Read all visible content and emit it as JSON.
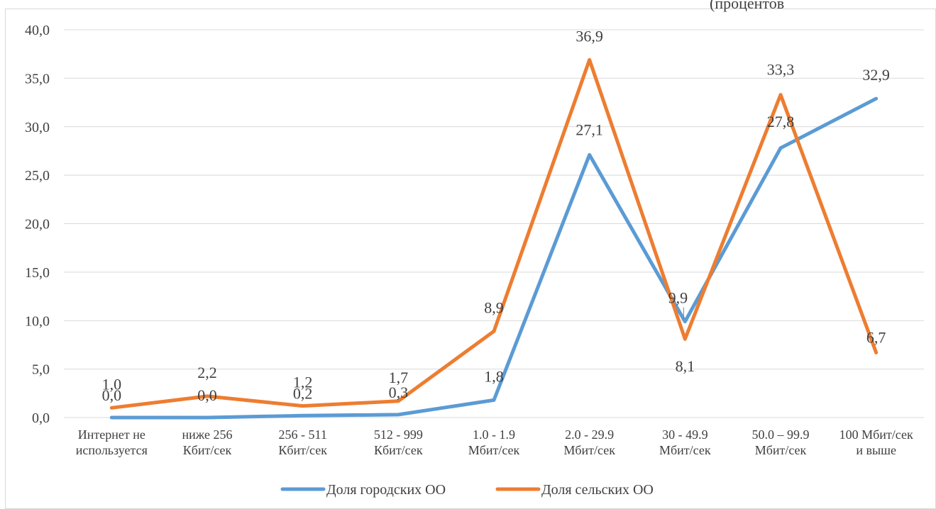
{
  "chart_data": {
    "type": "line",
    "corner_text": "(процентов",
    "ylim": [
      0,
      40
    ],
    "ytick_labels": [
      "0,0",
      "5,0",
      "10,0",
      "15,0",
      "20,0",
      "25,0",
      "30,0",
      "35,0",
      "40,0"
    ],
    "grid": true,
    "legend_position": "bottom",
    "categories": [
      [
        "Интернет не",
        "используется"
      ],
      [
        "ниже 256",
        "Кбит/сек"
      ],
      [
        "256 - 511",
        "Кбит/сек"
      ],
      [
        "512 - 999",
        "Кбит/сек"
      ],
      [
        "1.0 - 1.9",
        "Мбит/сек"
      ],
      [
        "2.0 - 29.9",
        "Мбит/сек"
      ],
      [
        "30 - 49.9",
        "Мбит/сек"
      ],
      [
        "50.0 – 99.9",
        "Мбит/сек"
      ],
      [
        "100 Мбит/сек",
        "и выше"
      ]
    ],
    "series": [
      {
        "name": "Доля городских ОО",
        "color": "#5b9bd5",
        "values": [
          0.0,
          0.0,
          0.2,
          0.3,
          1.8,
          27.1,
          9.9,
          27.8,
          32.9
        ],
        "labels": [
          "0,0",
          "0,0",
          "0,2",
          "0,3",
          "1,8",
          "27,1",
          "9,9",
          "27,8",
          "32,9"
        ]
      },
      {
        "name": "Доля сельских ОО",
        "color": "#ed7d31",
        "values": [
          1.0,
          2.2,
          1.2,
          1.7,
          8.9,
          36.9,
          8.1,
          33.3,
          6.7
        ],
        "labels": [
          "1,0",
          "2,2",
          "1,2",
          "1,7",
          "8,9",
          "36,9",
          "8,1",
          "33,3",
          "6,7"
        ]
      }
    ]
  }
}
